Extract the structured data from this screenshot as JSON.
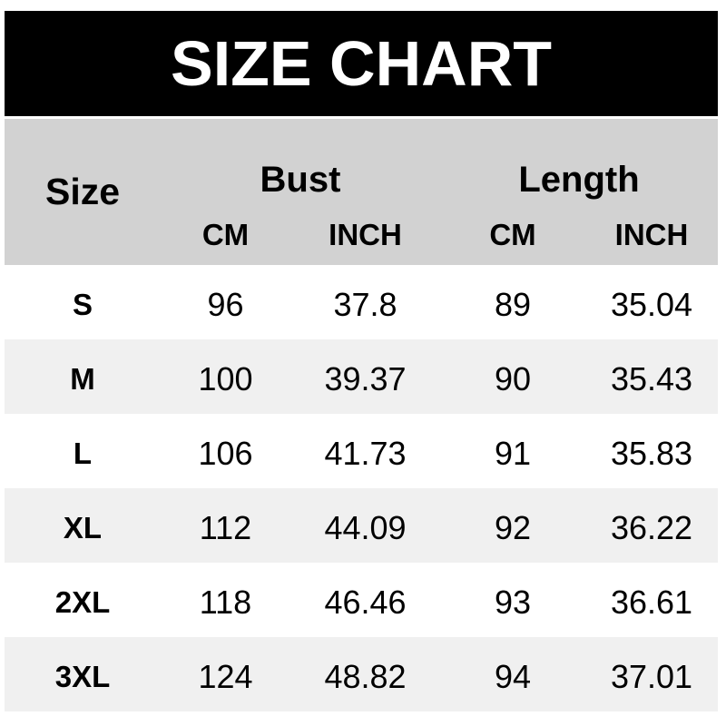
{
  "title": "SIZE CHART",
  "header": {
    "size_label": "Size",
    "bust_label": "Bust",
    "length_label": "Length",
    "units": [
      "CM",
      "INCH",
      "CM",
      "INCH"
    ]
  },
  "colors": {
    "banner_bg": "#000000",
    "banner_text": "#ffffff",
    "header_bg": "#d2d2d2",
    "row_bg": "#ffffff",
    "row_alt_bg": "#f0f0f0",
    "text": "#000000"
  },
  "chart_data": {
    "type": "table",
    "title": "SIZE CHART",
    "column_groups": [
      {
        "label": "Size",
        "span": 1
      },
      {
        "label": "Bust",
        "span": 2
      },
      {
        "label": "Length",
        "span": 2
      }
    ],
    "columns": [
      "Size",
      "Bust CM",
      "Bust INCH",
      "Length CM",
      "Length INCH"
    ],
    "unit_row": [
      "",
      "CM",
      "INCH",
      "CM",
      "INCH"
    ],
    "rows": [
      {
        "size": "S",
        "bust_cm": "96",
        "bust_inch": "37.8",
        "length_cm": "89",
        "length_inch": "35.04"
      },
      {
        "size": "M",
        "bust_cm": "100",
        "bust_inch": "39.37",
        "length_cm": "90",
        "length_inch": "35.43"
      },
      {
        "size": "L",
        "bust_cm": "106",
        "bust_inch": "41.73",
        "length_cm": "91",
        "length_inch": "35.83"
      },
      {
        "size": "XL",
        "bust_cm": "112",
        "bust_inch": "44.09",
        "length_cm": "92",
        "length_inch": "36.22"
      },
      {
        "size": "2XL",
        "bust_cm": "118",
        "bust_inch": "46.46",
        "length_cm": "93",
        "length_inch": "36.61"
      },
      {
        "size": "3XL",
        "bust_cm": "124",
        "bust_inch": "48.82",
        "length_cm": "94",
        "length_inch": "37.01"
      }
    ]
  }
}
